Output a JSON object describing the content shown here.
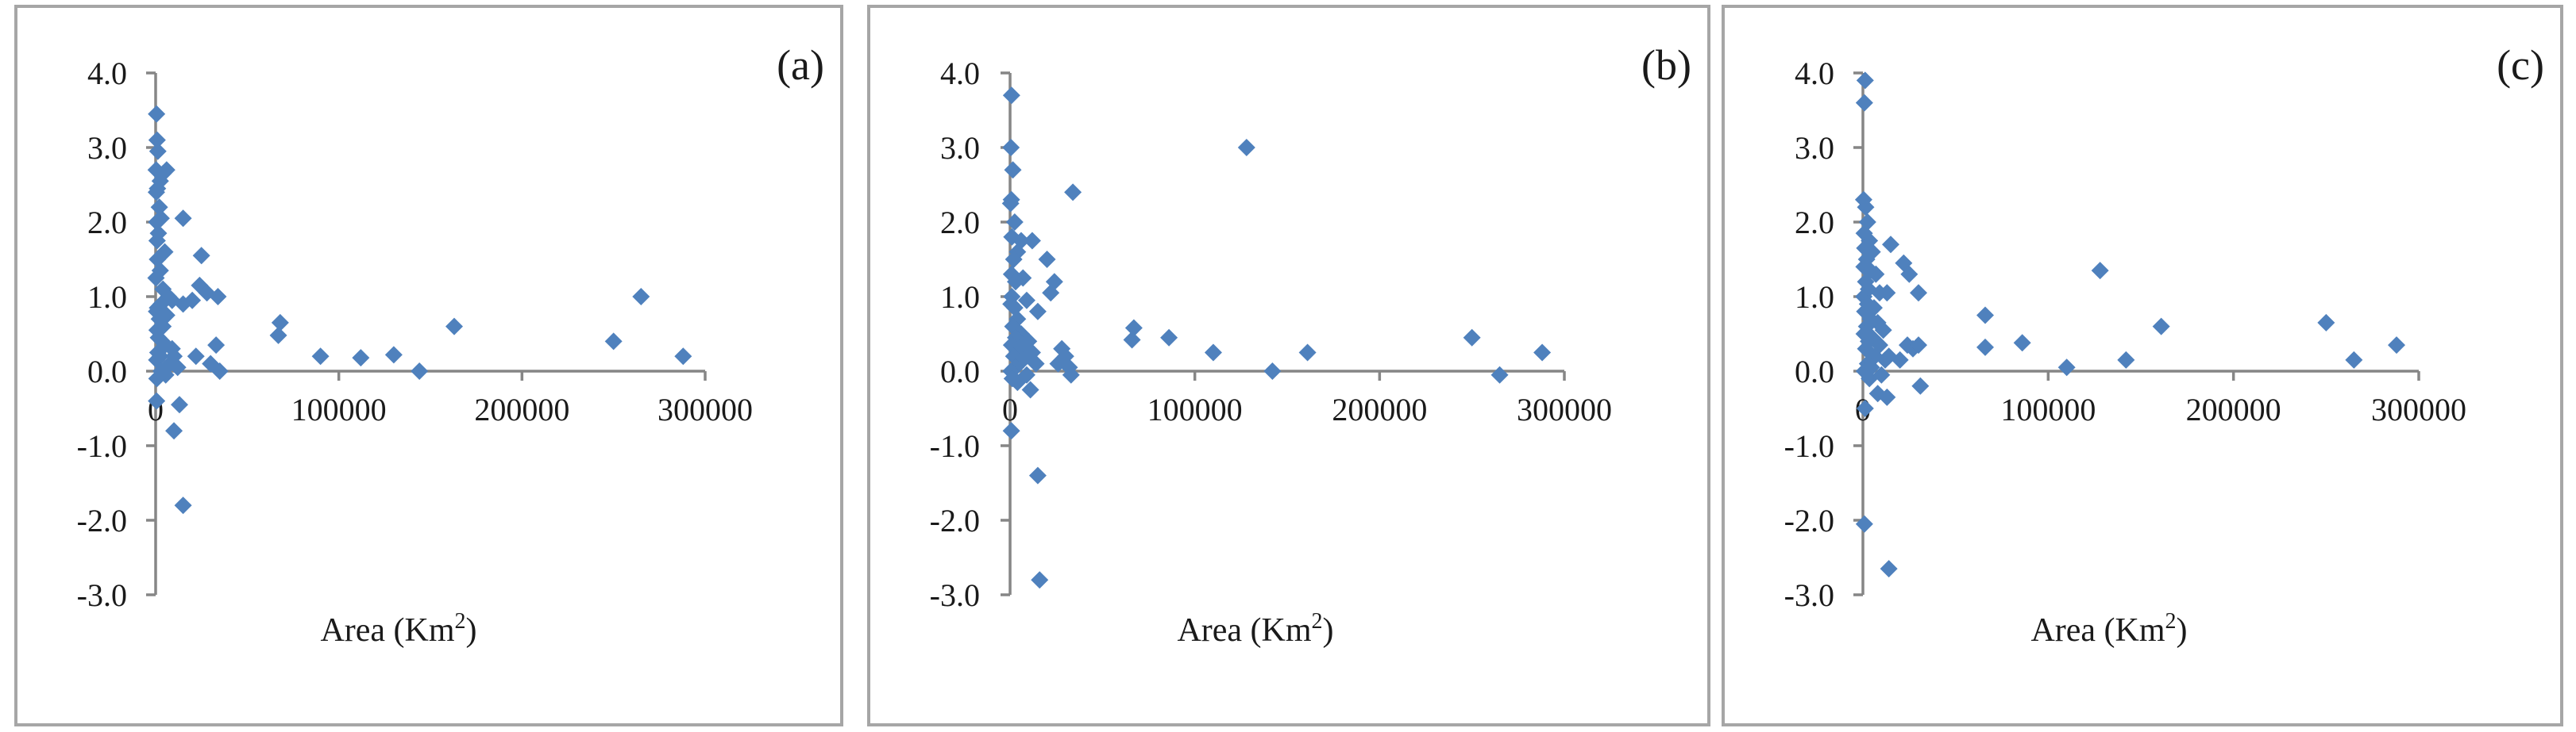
{
  "chart_data": [
    {
      "type": "scatter",
      "panel_label": "(a)",
      "xlabel_text": "Area (Km",
      "xlabel_sup": "2",
      "xlabel_close": ")",
      "xlim": [
        0,
        300000
      ],
      "ylim": [
        -3.0,
        4.0
      ],
      "xticks": [
        0,
        100000,
        200000,
        300000
      ],
      "xtick_labels": [
        "0",
        "100000",
        "200000",
        "300000"
      ],
      "yticks": [
        4.0,
        3.0,
        2.0,
        1.0,
        0.0,
        -1.0,
        -2.0,
        -3.0
      ],
      "ytick_labels": [
        "4.0",
        "3.0",
        "2.0",
        "1.0",
        "0.0",
        "-1.0",
        "-2.0",
        "-3.0"
      ],
      "grid": false,
      "marker": "diamond",
      "color": "#4f81bd",
      "points": [
        [
          500,
          3.45
        ],
        [
          800,
          3.1
        ],
        [
          1200,
          2.95
        ],
        [
          300,
          2.7
        ],
        [
          2500,
          2.55
        ],
        [
          6000,
          2.7
        ],
        [
          1000,
          2.45
        ],
        [
          400,
          2.4
        ],
        [
          4000,
          2.65
        ],
        [
          2000,
          2.2
        ],
        [
          600,
          2.0
        ],
        [
          3000,
          2.05
        ],
        [
          1500,
          1.85
        ],
        [
          800,
          1.75
        ],
        [
          5000,
          1.6
        ],
        [
          1000,
          1.5
        ],
        [
          2500,
          1.35
        ],
        [
          200,
          1.25
        ],
        [
          4000,
          1.1
        ],
        [
          7000,
          1.0
        ],
        [
          9000,
          0.95
        ],
        [
          3000,
          0.9
        ],
        [
          1000,
          0.85
        ],
        [
          500,
          0.8
        ],
        [
          2000,
          0.7
        ],
        [
          6000,
          0.75
        ],
        [
          4000,
          0.6
        ],
        [
          800,
          0.55
        ],
        [
          1500,
          0.45
        ],
        [
          3500,
          0.4
        ],
        [
          5000,
          0.35
        ],
        [
          9000,
          0.3
        ],
        [
          1200,
          0.25
        ],
        [
          2500,
          0.2
        ],
        [
          600,
          0.15
        ],
        [
          8000,
          0.1
        ],
        [
          12000,
          0.05
        ],
        [
          3000,
          0.0
        ],
        [
          5500,
          -0.05
        ],
        [
          700,
          -0.1
        ],
        [
          10000,
          0.2
        ],
        [
          15000,
          2.05
        ],
        [
          15000,
          0.9
        ],
        [
          20000,
          0.95
        ],
        [
          25000,
          1.55
        ],
        [
          24000,
          1.15
        ],
        [
          28000,
          1.05
        ],
        [
          34000,
          1.0
        ],
        [
          22000,
          0.2
        ],
        [
          30000,
          0.1
        ],
        [
          33000,
          0.35
        ],
        [
          35000,
          0.0
        ],
        [
          13000,
          -0.45
        ],
        [
          10000,
          -0.8
        ],
        [
          15000,
          -1.8
        ],
        [
          500,
          -0.4
        ],
        [
          68000,
          0.65
        ],
        [
          67000,
          0.48
        ],
        [
          90000,
          0.2
        ],
        [
          112000,
          0.18
        ],
        [
          130000,
          0.22
        ],
        [
          144000,
          0.0
        ],
        [
          163000,
          0.6
        ],
        [
          250000,
          0.4
        ],
        [
          265000,
          1.0
        ],
        [
          288000,
          0.2
        ]
      ]
    },
    {
      "type": "scatter",
      "panel_label": "(b)",
      "xlabel_text": "Area (Km",
      "xlabel_sup": "2",
      "xlabel_close": ")",
      "xlim": [
        0,
        300000
      ],
      "ylim": [
        -3.0,
        4.0
      ],
      "xticks": [
        0,
        100000,
        200000,
        300000
      ],
      "xtick_labels": [
        "0",
        "100000",
        "200000",
        "300000"
      ],
      "yticks": [
        4.0,
        3.0,
        2.0,
        1.0,
        0.0,
        -1.0,
        -2.0,
        -3.0
      ],
      "ytick_labels": [
        "4.0",
        "3.0",
        "2.0",
        "1.0",
        "0.0",
        "-1.0",
        "-2.0",
        "-3.0"
      ],
      "grid": false,
      "marker": "diamond",
      "color": "#4f81bd",
      "points": [
        [
          800,
          3.7
        ],
        [
          500,
          3.0
        ],
        [
          1500,
          2.7
        ],
        [
          700,
          2.3
        ],
        [
          300,
          2.25
        ],
        [
          2500,
          2.0
        ],
        [
          1000,
          1.8
        ],
        [
          6000,
          1.75
        ],
        [
          12000,
          1.75
        ],
        [
          4000,
          1.6
        ],
        [
          2000,
          1.5
        ],
        [
          800,
          1.3
        ],
        [
          7000,
          1.25
        ],
        [
          3000,
          1.2
        ],
        [
          1000,
          1.0
        ],
        [
          500,
          0.9
        ],
        [
          9000,
          0.95
        ],
        [
          2500,
          0.85
        ],
        [
          15000,
          0.8
        ],
        [
          4000,
          0.7
        ],
        [
          1500,
          0.6
        ],
        [
          6000,
          0.5
        ],
        [
          3000,
          0.45
        ],
        [
          10000,
          0.4
        ],
        [
          800,
          0.35
        ],
        [
          5000,
          0.3
        ],
        [
          12000,
          0.25
        ],
        [
          2000,
          0.2
        ],
        [
          7000,
          0.15
        ],
        [
          14000,
          0.1
        ],
        [
          3000,
          0.05
        ],
        [
          500,
          0.0
        ],
        [
          9000,
          -0.05
        ],
        [
          1200,
          -0.1
        ],
        [
          4000,
          -0.15
        ],
        [
          11000,
          -0.25
        ],
        [
          700,
          -0.8
        ],
        [
          15000,
          -1.4
        ],
        [
          16000,
          -2.8
        ],
        [
          20000,
          1.5
        ],
        [
          24000,
          1.2
        ],
        [
          22000,
          1.05
        ],
        [
          28000,
          0.3
        ],
        [
          30000,
          0.2
        ],
        [
          32000,
          0.05
        ],
        [
          33000,
          -0.05
        ],
        [
          26000,
          0.1
        ],
        [
          34000,
          2.4
        ],
        [
          67000,
          0.58
        ],
        [
          66000,
          0.42
        ],
        [
          86000,
          0.45
        ],
        [
          110000,
          0.25
        ],
        [
          128000,
          3.0
        ],
        [
          142000,
          0.0
        ],
        [
          161000,
          0.25
        ],
        [
          250000,
          0.45
        ],
        [
          265000,
          -0.05
        ],
        [
          288000,
          0.25
        ]
      ]
    },
    {
      "type": "scatter",
      "panel_label": "(c)",
      "xlabel_text": "Area (Km",
      "xlabel_sup": "2",
      "xlabel_close": ")",
      "xlim": [
        0,
        300000
      ],
      "ylim": [
        -3.0,
        4.0
      ],
      "xticks": [
        0,
        100000,
        200000,
        300000
      ],
      "xtick_labels": [
        "0",
        "100000",
        "200000",
        "300000"
      ],
      "yticks": [
        4.0,
        3.0,
        2.0,
        1.0,
        0.0,
        -1.0,
        -2.0,
        -3.0
      ],
      "ytick_labels": [
        "4.0",
        "3.0",
        "2.0",
        "1.0",
        "0.0",
        "-1.0",
        "-2.0",
        "-3.0"
      ],
      "grid": false,
      "marker": "diamond",
      "color": "#4f81bd",
      "points": [
        [
          1200,
          3.9
        ],
        [
          800,
          3.6
        ],
        [
          400,
          2.3
        ],
        [
          1500,
          2.2
        ],
        [
          2500,
          2.0
        ],
        [
          700,
          1.85
        ],
        [
          3500,
          1.75
        ],
        [
          1000,
          1.65
        ],
        [
          5000,
          1.6
        ],
        [
          2000,
          1.5
        ],
        [
          600,
          1.4
        ],
        [
          4000,
          1.35
        ],
        [
          7000,
          1.3
        ],
        [
          1500,
          1.2
        ],
        [
          3000,
          1.1
        ],
        [
          9000,
          1.05
        ],
        [
          500,
          1.0
        ],
        [
          2500,
          0.9
        ],
        [
          6000,
          0.85
        ],
        [
          1000,
          0.8
        ],
        [
          4000,
          0.7
        ],
        [
          8000,
          0.65
        ],
        [
          2000,
          0.6
        ],
        [
          11000,
          0.55
        ],
        [
          700,
          0.5
        ],
        [
          5000,
          0.45
        ],
        [
          3000,
          0.4
        ],
        [
          9000,
          0.35
        ],
        [
          1500,
          0.3
        ],
        [
          6500,
          0.2
        ],
        [
          12000,
          0.15
        ],
        [
          2500,
          0.1
        ],
        [
          4500,
          0.05
        ],
        [
          800,
          0.0
        ],
        [
          10000,
          -0.05
        ],
        [
          3500,
          -0.1
        ],
        [
          14000,
          0.2
        ],
        [
          8000,
          -0.3
        ],
        [
          13000,
          -0.35
        ],
        [
          1200,
          -0.5
        ],
        [
          800,
          -2.05
        ],
        [
          14000,
          -2.65
        ],
        [
          15000,
          1.7
        ],
        [
          13000,
          1.05
        ],
        [
          22000,
          1.45
        ],
        [
          25000,
          1.3
        ],
        [
          30000,
          1.05
        ],
        [
          24000,
          0.35
        ],
        [
          27000,
          0.3
        ],
        [
          30000,
          0.35
        ],
        [
          31000,
          -0.2
        ],
        [
          20000,
          0.15
        ],
        [
          66000,
          0.75
        ],
        [
          66000,
          0.32
        ],
        [
          86000,
          0.38
        ],
        [
          110000,
          0.05
        ],
        [
          128000,
          1.35
        ],
        [
          142000,
          0.15
        ],
        [
          161000,
          0.6
        ],
        [
          250000,
          0.65
        ],
        [
          265000,
          0.15
        ],
        [
          288000,
          0.35
        ]
      ]
    }
  ]
}
